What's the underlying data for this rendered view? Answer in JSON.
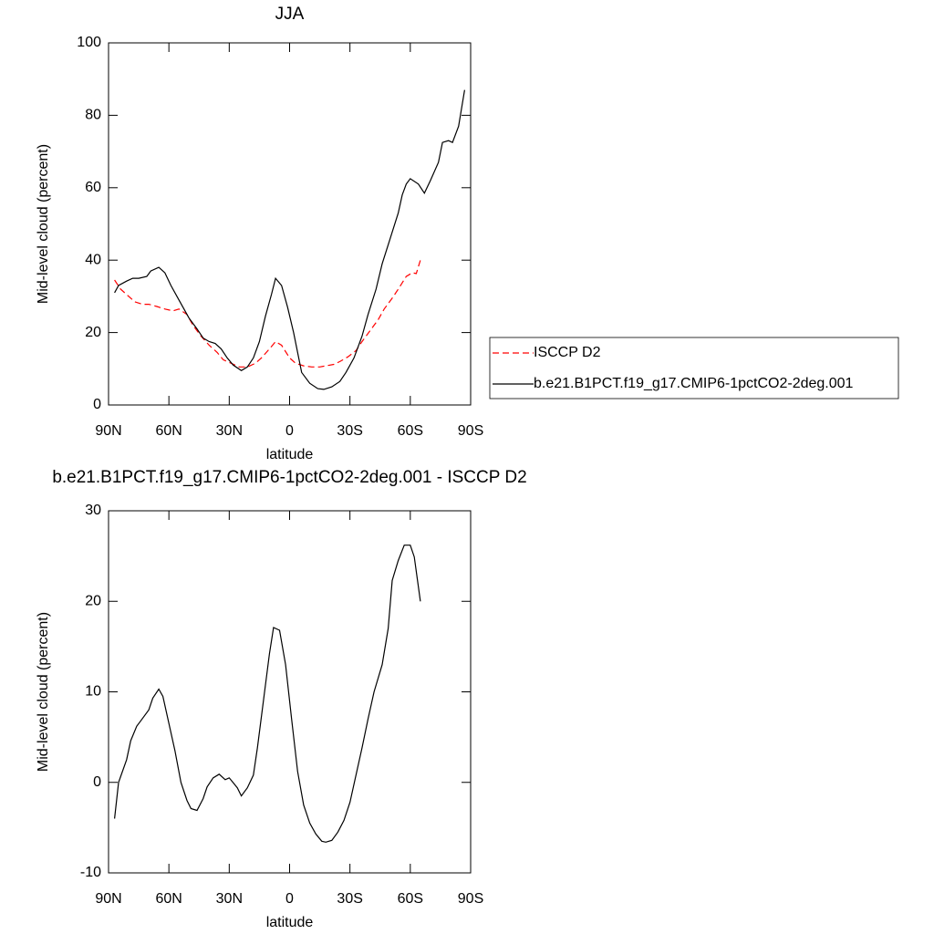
{
  "chart_data": [
    {
      "type": "line",
      "title": "JJA",
      "x_label": "latitude",
      "y_label": "Mid-level cloud (percent)",
      "xlim": [
        90,
        -90
      ],
      "xticks": [
        {
          "value": 90,
          "label": "90N"
        },
        {
          "value": 60,
          "label": "60N"
        },
        {
          "value": 30,
          "label": "30N"
        },
        0,
        {
          "value": -30,
          "label": "30S"
        },
        {
          "value": -60,
          "label": "60S"
        },
        {
          "value": -90,
          "label": "90S"
        }
      ],
      "ylim": [
        0,
        100
      ],
      "yticks": [
        0,
        20,
        40,
        60,
        80,
        100
      ],
      "legend": "right",
      "series": [
        {
          "name": "ISCCP D2",
          "color": "#ff0000",
          "dashed": true,
          "x": [
            87,
            84,
            80,
            77,
            73,
            70,
            66,
            62,
            58,
            55,
            51,
            48,
            44,
            40,
            36,
            33,
            29,
            25,
            21,
            17,
            14,
            10,
            7,
            4,
            0,
            -3,
            -7,
            -11,
            -15,
            -18,
            -22,
            -25,
            -29,
            -33,
            -36,
            -40,
            -44,
            -47,
            -51,
            -54,
            -58,
            -61,
            -63,
            -65
          ],
          "values": [
            34.5,
            32,
            30,
            28.5,
            27.8,
            27.8,
            27.2,
            26.5,
            26,
            26.5,
            25,
            22,
            19,
            16.5,
            14.5,
            12.5,
            11.5,
            10.5,
            10.5,
            11.5,
            13,
            15.5,
            17.5,
            16.5,
            13,
            11.5,
            10.8,
            10.5,
            10.5,
            10.8,
            11.2,
            12,
            13.3,
            15,
            17.5,
            20.5,
            23.5,
            26.5,
            29.5,
            32,
            35.5,
            36.5,
            36.3,
            40
          ]
        },
        {
          "name": "b.e21.B1PCT.f19_g17.CMIP6-1pctCO2-2deg.001",
          "color": "#000000",
          "dashed": false,
          "x": [
            87,
            85,
            81,
            78,
            75,
            71,
            69,
            65,
            62,
            59,
            56,
            53,
            50,
            46,
            43,
            40,
            37,
            34,
            31,
            28,
            24,
            21,
            18,
            15,
            12,
            9,
            7,
            4,
            1,
            -2,
            -6,
            -10,
            -14,
            -17,
            -21,
            -25,
            -28,
            -32,
            -36,
            -39,
            -43,
            -46,
            -50,
            -54,
            -56,
            -58,
            -60,
            -64,
            -67,
            -70,
            -74,
            -76,
            -79,
            -81,
            -84,
            -87
          ],
          "values": [
            31,
            33,
            34.2,
            35,
            35,
            35.5,
            37,
            38,
            36.5,
            33,
            30,
            27,
            24,
            21,
            18.5,
            17.5,
            17,
            15.5,
            13,
            11,
            9.5,
            10.5,
            13,
            17.5,
            24.5,
            30.5,
            35,
            33,
            27,
            20,
            9,
            6,
            4.5,
            4.3,
            5,
            6.5,
            9,
            13,
            19,
            25,
            32,
            39,
            46,
            53,
            58,
            61,
            62.5,
            61,
            58.5,
            62,
            67,
            72.5,
            73,
            72.5,
            77,
            87
          ]
        }
      ]
    },
    {
      "type": "line",
      "title": "b.e21.B1PCT.f19_g17.CMIP6-1pctCO2-2deg.001 - ISCCP D2",
      "x_label": "latitude",
      "y_label": "Mid-level cloud (percent)",
      "xlim": [
        90,
        -90
      ],
      "xticks": [
        {
          "value": 90,
          "label": "90N"
        },
        {
          "value": 60,
          "label": "60N"
        },
        {
          "value": 30,
          "label": "30N"
        },
        0,
        {
          "value": -30,
          "label": "30S"
        },
        {
          "value": -60,
          "label": "60S"
        },
        {
          "value": -90,
          "label": "90S"
        }
      ],
      "ylim": [
        -10,
        30
      ],
      "yticks": [
        -10,
        0,
        10,
        20,
        30
      ],
      "series": [
        {
          "color": "#000000",
          "dashed": false,
          "x": [
            87,
            85,
            81,
            79,
            76,
            74,
            70,
            68,
            65,
            63,
            60,
            57,
            54,
            51,
            49,
            46,
            43,
            41,
            38,
            35,
            32,
            30,
            26,
            24,
            21,
            18,
            16,
            13,
            10,
            8,
            5,
            2,
            -1,
            -4,
            -7,
            -10,
            -13,
            -16,
            -18,
            -21,
            -24,
            -27,
            -30,
            -33,
            -36,
            -39,
            -42,
            -46,
            -49,
            -51,
            -54,
            -57,
            -60,
            -62,
            -65
          ],
          "values": [
            -4,
            0,
            2.5,
            4.6,
            6.2,
            6.8,
            8,
            9.3,
            10.3,
            9.5,
            6.5,
            3.5,
            0,
            -2,
            -2.9,
            -3.1,
            -1.8,
            -0.5,
            0.5,
            0.9,
            0.3,
            0.5,
            -0.6,
            -1.5,
            -0.6,
            0.8,
            3.8,
            9,
            14.2,
            17.1,
            16.8,
            13,
            7,
            1.2,
            -2.5,
            -4.5,
            -5.7,
            -6.5,
            -6.6,
            -6.4,
            -5.5,
            -4.2,
            -2.2,
            0.8,
            3.8,
            7,
            10,
            13,
            17,
            22.3,
            24.5,
            26.2,
            26.2,
            24.9,
            20
          ]
        }
      ]
    }
  ]
}
